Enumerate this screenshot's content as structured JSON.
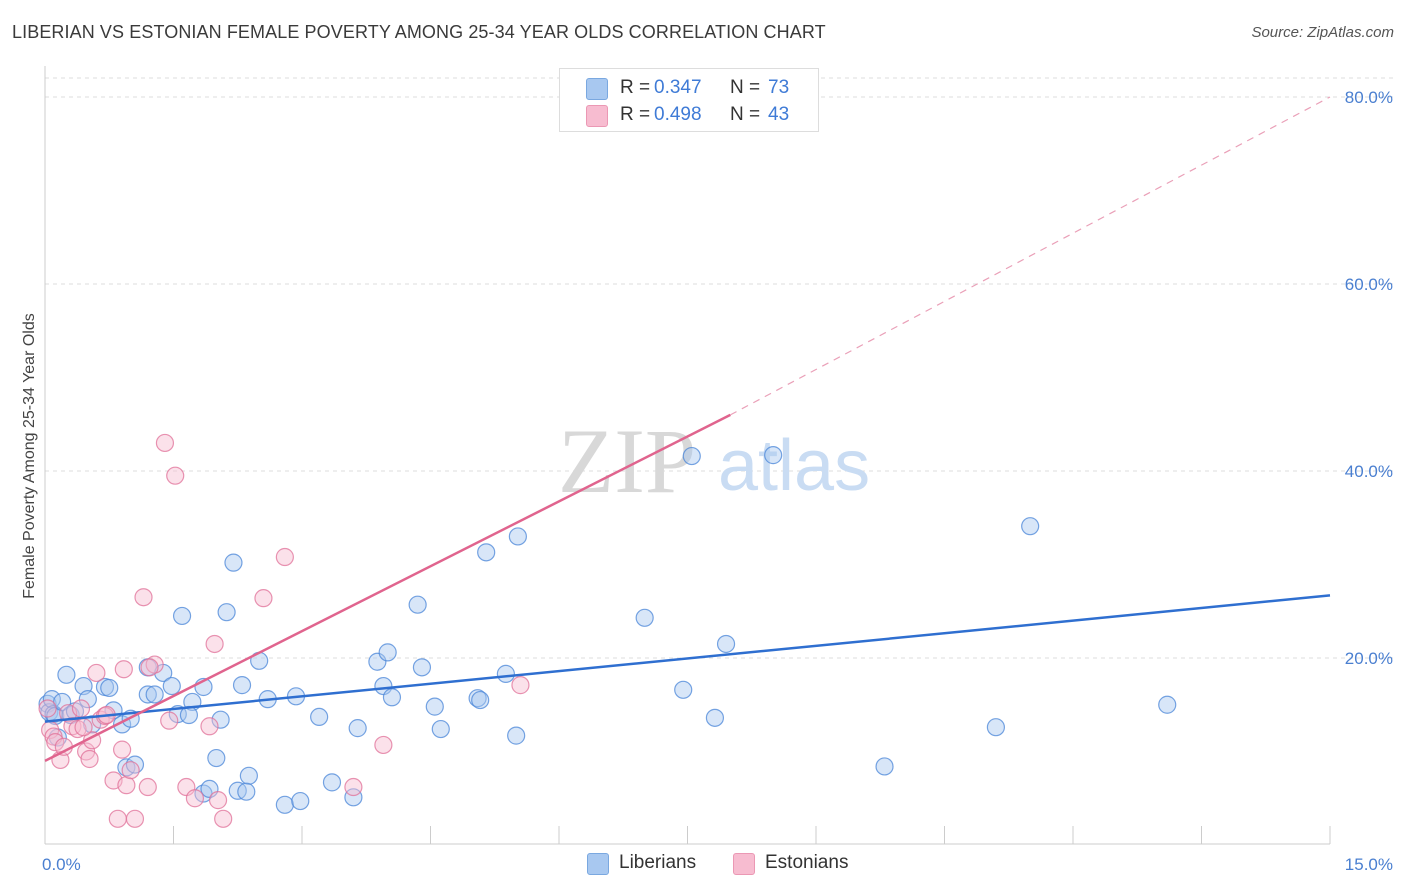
{
  "title": "LIBERIAN VS ESTONIAN FEMALE POVERTY AMONG 25-34 YEAR OLDS CORRELATION CHART",
  "source": "Source: ZipAtlas.com",
  "watermark": {
    "zip": "ZIP",
    "atlas": "atlas"
  },
  "legend": {
    "rows": [
      {
        "r_label": "R =",
        "r_value": "0.347",
        "n_label": "N =",
        "n_value": "73",
        "color": "#a8c8f0"
      },
      {
        "r_label": "R =",
        "r_value": "0.498",
        "n_label": "N =",
        "n_value": "43",
        "color": "#f7bcd0"
      }
    ]
  },
  "bottom_legend": [
    {
      "label": "Liberians",
      "color": "#a8c8f0"
    },
    {
      "label": "Estonians",
      "color": "#f7bcd0"
    }
  ],
  "chart_data": {
    "type": "scatter",
    "title": "LIBERIAN VS ESTONIAN FEMALE POVERTY AMONG 25-34 YEAR OLDS CORRELATION CHART",
    "xlabel": "",
    "ylabel": "Female Poverty Among 25-34 Year Olds",
    "xlim": [
      0,
      15
    ],
    "ylim": [
      0,
      80
    ],
    "x_ticks_labels": [
      "0.0%",
      "15.0%"
    ],
    "y_ticks": [
      20,
      40,
      60,
      80
    ],
    "y_tick_labels": [
      "20.0%",
      "40.0%",
      "60.0%",
      "80.0%"
    ],
    "grid": true,
    "legend_position": "top-center",
    "series": [
      {
        "name": "Liberians",
        "color": "#4a86d8",
        "fill": "#a8c8f0",
        "trend": {
          "x": [
            0,
            15
          ],
          "y": [
            13.2,
            26.7
          ],
          "dashed_extension": false
        },
        "points": [
          [
            0.03,
            15.1
          ],
          [
            0.05,
            14.2
          ],
          [
            0.08,
            15.6
          ],
          [
            0.1,
            14.0
          ],
          [
            0.12,
            13.8
          ],
          [
            0.2,
            15.3
          ],
          [
            0.25,
            18.2
          ],
          [
            0.3,
            13.9
          ],
          [
            0.35,
            14.3
          ],
          [
            0.45,
            17.0
          ],
          [
            0.5,
            15.6
          ],
          [
            0.55,
            12.9
          ],
          [
            0.7,
            16.9
          ],
          [
            0.75,
            16.8
          ],
          [
            0.8,
            14.4
          ],
          [
            0.9,
            12.9
          ],
          [
            1.0,
            13.5
          ],
          [
            0.95,
            8.3
          ],
          [
            1.05,
            8.6
          ],
          [
            1.2,
            19.0
          ],
          [
            1.2,
            16.1
          ],
          [
            1.28,
            16.1
          ],
          [
            1.38,
            18.4
          ],
          [
            1.48,
            17.0
          ],
          [
            1.55,
            14.0
          ],
          [
            1.6,
            24.5
          ],
          [
            1.72,
            15.3
          ],
          [
            1.85,
            5.5
          ],
          [
            1.85,
            16.9
          ],
          [
            1.92,
            6.0
          ],
          [
            2.0,
            9.3
          ],
          [
            2.05,
            13.4
          ],
          [
            2.12,
            24.9
          ],
          [
            2.2,
            30.2
          ],
          [
            2.25,
            5.8
          ],
          [
            2.3,
            17.1
          ],
          [
            2.38,
            7.4
          ],
          [
            2.35,
            5.7
          ],
          [
            2.5,
            19.7
          ],
          [
            2.6,
            15.6
          ],
          [
            2.8,
            4.3
          ],
          [
            2.93,
            15.9
          ],
          [
            2.98,
            4.7
          ],
          [
            3.2,
            13.7
          ],
          [
            3.35,
            6.7
          ],
          [
            3.6,
            5.1
          ],
          [
            3.65,
            12.5
          ],
          [
            3.88,
            19.6
          ],
          [
            3.95,
            17.0
          ],
          [
            4.0,
            20.6
          ],
          [
            4.05,
            15.8
          ],
          [
            4.35,
            25.7
          ],
          [
            4.4,
            19.0
          ],
          [
            4.55,
            14.8
          ],
          [
            4.62,
            12.4
          ],
          [
            5.05,
            15.7
          ],
          [
            5.08,
            15.5
          ],
          [
            5.15,
            31.3
          ],
          [
            5.38,
            18.3
          ],
          [
            5.5,
            11.7
          ],
          [
            5.52,
            33.0
          ],
          [
            7.0,
            24.3
          ],
          [
            7.45,
            16.6
          ],
          [
            7.55,
            41.6
          ],
          [
            7.82,
            13.6
          ],
          [
            7.95,
            21.5
          ],
          [
            8.5,
            41.7
          ],
          [
            9.8,
            8.4
          ],
          [
            11.1,
            12.6
          ],
          [
            11.5,
            34.1
          ],
          [
            13.1,
            15.0
          ],
          [
            0.15,
            11.5
          ],
          [
            1.68,
            13.9
          ]
        ]
      },
      {
        "name": "Estonians",
        "color": "#e07098",
        "fill": "#f7bcd0",
        "trend": {
          "x": [
            0,
            8.0
          ],
          "y": [
            9.0,
            46.0
          ],
          "dashed_extension_to": [
            15,
            80
          ]
        },
        "points": [
          [
            0.03,
            14.6
          ],
          [
            0.06,
            12.3
          ],
          [
            0.1,
            11.6
          ],
          [
            0.12,
            11.0
          ],
          [
            0.18,
            9.1
          ],
          [
            0.22,
            10.5
          ],
          [
            0.27,
            14.1
          ],
          [
            0.32,
            12.7
          ],
          [
            0.38,
            12.4
          ],
          [
            0.42,
            14.6
          ],
          [
            0.48,
            10.0
          ],
          [
            0.52,
            9.2
          ],
          [
            0.55,
            11.2
          ],
          [
            0.6,
            18.4
          ],
          [
            0.65,
            13.4
          ],
          [
            0.7,
            13.8
          ],
          [
            0.72,
            13.9
          ],
          [
            0.8,
            6.9
          ],
          [
            0.85,
            2.8
          ],
          [
            0.9,
            10.2
          ],
          [
            0.92,
            18.8
          ],
          [
            0.95,
            6.4
          ],
          [
            1.0,
            8.0
          ],
          [
            1.05,
            2.8
          ],
          [
            1.15,
            26.5
          ],
          [
            1.2,
            6.2
          ],
          [
            1.28,
            19.3
          ],
          [
            1.4,
            43.0
          ],
          [
            1.45,
            13.3
          ],
          [
            1.52,
            39.5
          ],
          [
            1.65,
            6.2
          ],
          [
            1.75,
            5.0
          ],
          [
            1.92,
            12.7
          ],
          [
            1.98,
            21.5
          ],
          [
            2.02,
            4.8
          ],
          [
            2.08,
            2.8
          ],
          [
            2.55,
            26.4
          ],
          [
            2.8,
            30.8
          ],
          [
            3.6,
            6.2
          ],
          [
            3.95,
            10.7
          ],
          [
            5.55,
            17.1
          ],
          [
            1.22,
            19.0
          ],
          [
            0.45,
            12.6
          ]
        ]
      }
    ]
  }
}
